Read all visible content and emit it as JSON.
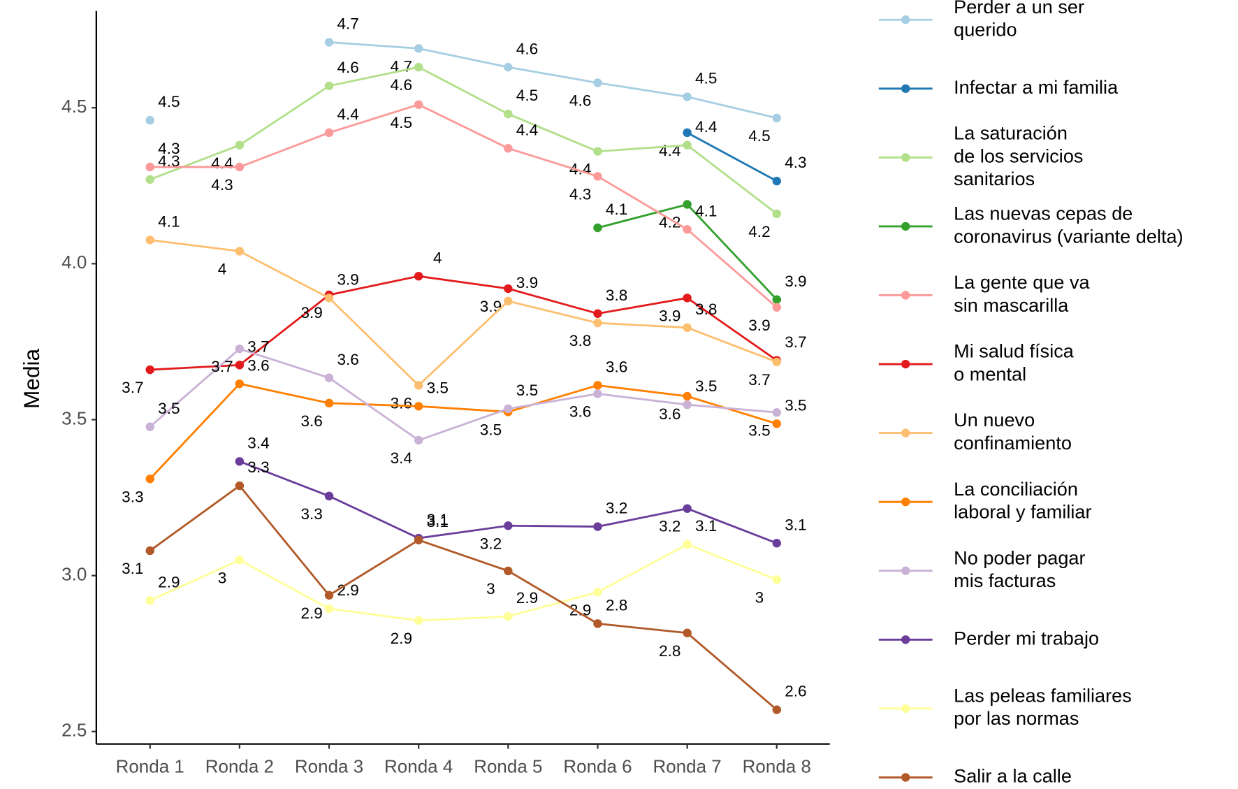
{
  "chart_data": {
    "type": "line",
    "y_label": "Media",
    "categories": [
      "Ronda 1",
      "Ronda 2",
      "Ronda 3",
      "Ronda 4",
      "Ronda 5",
      "Ronda 6",
      "Ronda 7",
      "Ronda 8"
    ],
    "ylim": [
      2.46,
      4.81
    ],
    "yticks": [
      2.5,
      {
        "value": 3,
        "label": "3.0"
      },
      3.5,
      {
        "value": 4,
        "label": "4.0"
      },
      4.5
    ],
    "grid": false,
    "legend": "right",
    "series": [
      {
        "name": "Perder a un ser\nquerido",
        "color": "#a6cee3",
        "values": [
          4.46,
          null,
          4.71,
          4.69,
          4.63,
          4.58,
          4.535,
          4.467
        ],
        "value_labels": [
          "4.5",
          null,
          "4.7",
          "4.7",
          "4.6",
          "4.6",
          "4.5",
          "4.5"
        ]
      },
      {
        "name": "Infectar a mi familia",
        "color": "#1f78b4",
        "values": [
          null,
          null,
          null,
          null,
          null,
          null,
          4.42,
          4.265
        ],
        "value_labels": [
          null,
          null,
          null,
          null,
          null,
          null,
          "4.4",
          "4.3"
        ]
      },
      {
        "name": "La saturación\nde los servicios\nsanitarios",
        "color": "#b2df8a",
        "values": [
          4.27,
          4.38,
          4.57,
          4.63,
          4.48,
          4.36,
          4.38,
          4.16
        ],
        "value_labels": [
          "4.3",
          "4.4",
          "4.6",
          "4.6",
          "4.5",
          "4.4",
          "4.4",
          "4.2"
        ]
      },
      {
        "name": "Las nuevas cepas de\ncoronavirus (variante delta)",
        "color": "#33a02c",
        "values": [
          null,
          null,
          null,
          null,
          null,
          4.115,
          4.19,
          3.885
        ],
        "value_labels": [
          null,
          null,
          null,
          null,
          null,
          "4.1",
          "4.2",
          "3.9"
        ]
      },
      {
        "name": "La gente que va\nsin mascarilla",
        "color": "#fb9a99",
        "values": [
          4.31,
          4.31,
          4.42,
          4.51,
          4.37,
          4.28,
          4.11,
          3.86
        ],
        "value_labels": [
          "4.3",
          "4.3",
          "4.4",
          "4.5",
          "4.4",
          "4.3",
          "4.1",
          "3.9"
        ]
      },
      {
        "name": "Mi salud física\no mental",
        "color": "#e31a1c",
        "values": [
          3.66,
          3.675,
          3.9,
          3.96,
          3.92,
          3.84,
          3.89,
          3.69
        ],
        "value_labels": [
          "3.7",
          "3.7",
          "3.9",
          "4",
          "3.9",
          "3.8",
          "3.9",
          "3.7"
        ]
      },
      {
        "name": "Un nuevo\nconfinamiento",
        "color": "#fdbf6f",
        "values": [
          4.076,
          4.04,
          3.89,
          3.61,
          3.88,
          3.81,
          3.795,
          3.685
        ],
        "value_labels": [
          "4.1",
          "4",
          "3.9",
          "3.6",
          "3.9",
          "3.8",
          "3.8",
          "3.7"
        ]
      },
      {
        "name": "La conciliación\nlaboral y familiar",
        "color": "#ff7f00",
        "values": [
          3.31,
          3.615,
          3.553,
          3.543,
          3.525,
          3.61,
          3.575,
          3.487
        ],
        "value_labels": [
          "3.3",
          "3.6",
          "3.6",
          "3.5",
          "3.5",
          "3.6",
          "3.6",
          "3.5"
        ]
      },
      {
        "name": "No poder pagar\nmis facturas",
        "color": "#cab2d6",
        "values": [
          3.477,
          3.727,
          3.634,
          3.434,
          3.535,
          3.583,
          3.548,
          3.523
        ],
        "value_labels": [
          "3.5",
          "3.7",
          "3.6",
          "3.4",
          "3.5",
          "3.6",
          "3.5",
          "3.5"
        ]
      },
      {
        "name": "Perder mi trabajo",
        "color": "#6a3d9a",
        "values": [
          null,
          3.366,
          3.255,
          3.12,
          3.16,
          3.157,
          3.215,
          3.104
        ],
        "value_labels": [
          null,
          "3.4",
          "3.3",
          "3.1",
          "3.2",
          "3.2",
          "3.2",
          "3.1"
        ]
      },
      {
        "name": "Las peleas familiares\npor las normas",
        "color": "#ffff99",
        "values": [
          2.92,
          3.05,
          2.894,
          2.856,
          2.869,
          2.947,
          3.1,
          2.987
        ],
        "value_labels": [
          "2.9",
          "3",
          "2.9",
          "2.9",
          "2.9",
          "2.9",
          "3.1",
          "3"
        ]
      },
      {
        "name": "Salir a la calle",
        "color": "#b15928",
        "values": [
          3.08,
          3.288,
          2.937,
          3.114,
          3.015,
          2.846,
          2.816,
          2.57
        ],
        "value_labels": [
          "3.1",
          "3.3",
          "2.9",
          "3.1",
          "3",
          "2.8",
          "2.8",
          "2.6"
        ]
      }
    ]
  }
}
